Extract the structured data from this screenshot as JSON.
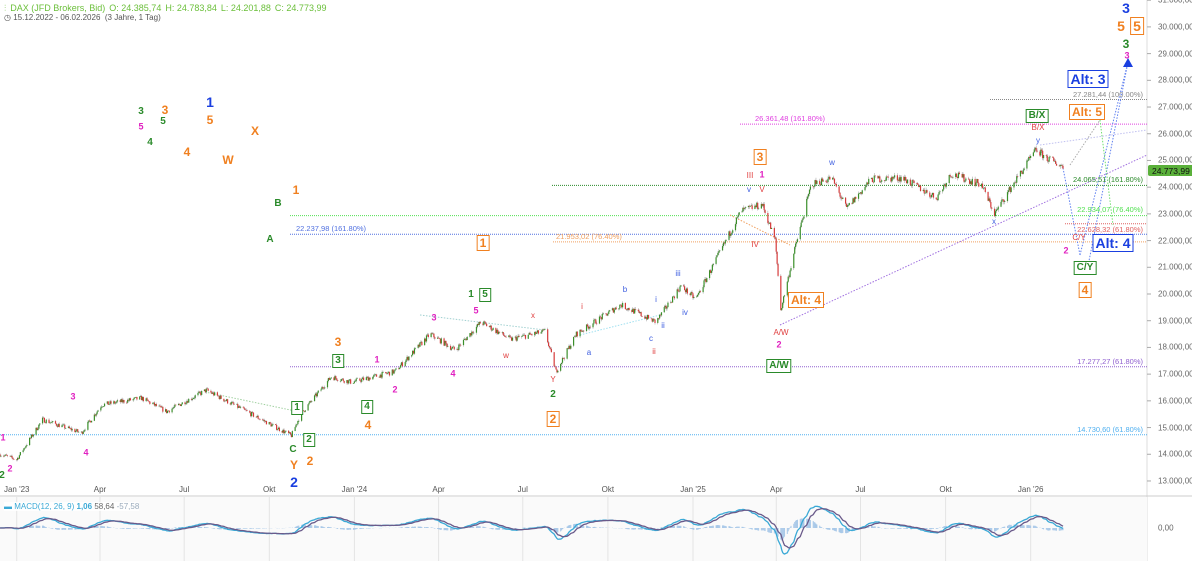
{
  "header": {
    "icon": "bar-chart-icon",
    "instrument": "DAX (JFD Brokers, Bid)",
    "open": "O: 24.385,74",
    "high": "H: 24.783,84",
    "low": "L: 24.201,88",
    "close": "C: 24.773,99",
    "range": "15.12.2022 - 06.02.2026",
    "period": "(3 Jahre, 1 Tag)",
    "clock_icon": "clock-icon"
  },
  "price_tag": "24.773,99",
  "macd": {
    "label": "MACD(12, 26, 9)",
    "v1": "1,06",
    "v2": "58,64",
    "v3": "-57,58",
    "zero_label": "0,00"
  },
  "colors": {
    "up": "#3a8f2a",
    "down": "#d63a3a",
    "blue": "#1a3fe0",
    "orange": "#f08020",
    "green": "#2a8a2a",
    "magenta": "#e020c0",
    "red": "#e04040",
    "lblue": "#4060e0",
    "macd": "#3aa9d6",
    "signal": "#6a5a8a",
    "hist": "#a8c8e8"
  },
  "fib_levels": [
    {
      "text": "27.281,44 (100.00%)",
      "value": 27281.44,
      "color": "#888888"
    },
    {
      "text": "26.361,48 (161.80%)",
      "value": 26361.48,
      "color": "#e040e0"
    },
    {
      "text": "24.065,51 (161.80%)",
      "value": 24065.51,
      "color": "#2a8a2a"
    },
    {
      "text": "22.934,07 (76.40%)",
      "value": 22934.07,
      "color": "#50e050"
    },
    {
      "text": "22.628,32 (61.80%)",
      "value": 22628.32,
      "color": "#e06060"
    },
    {
      "text": "22.237,98 (161.80%)",
      "value": 22237.98,
      "color": "#5070e0"
    },
    {
      "text": "21.953,02 (76.40%)",
      "value": 21953.02,
      "color": "#f0a060"
    },
    {
      "text": "17.277,27 (61.80%)",
      "value": 17277.27,
      "color": "#9060d0"
    },
    {
      "text": "14.730,60 (61.80%)",
      "value": 14730.6,
      "color": "#50b0f0"
    }
  ],
  "waves": {
    "blue": [
      "3",
      "1",
      "2",
      "Alt: 3",
      "Alt: 4"
    ],
    "orange": [
      "5",
      "5",
      "3",
      "5",
      "X",
      "W",
      "4",
      "1",
      "2",
      "Y",
      "3",
      "4",
      "1",
      "2",
      "3",
      "Alt: 4",
      "Alt: 5",
      "4"
    ],
    "green": [
      "3",
      "3",
      "5",
      "4",
      "B",
      "A",
      "C",
      "1",
      "2",
      "3",
      "4",
      "1",
      "5",
      "2",
      "A/W",
      "B/X",
      "C/Y",
      "2"
    ],
    "magenta": [
      "3",
      "5",
      "3",
      "4",
      "1",
      "2",
      "1",
      "2",
      "3",
      "4",
      "5",
      "1",
      "2",
      "2"
    ],
    "red": [
      "x",
      "w",
      "i",
      "ii",
      "Y",
      "III",
      "V",
      "IV",
      "A/W",
      "B/X",
      "C/Y"
    ],
    "lblue": [
      "b",
      "a",
      "i",
      "ii",
      "c",
      "iii",
      "iv",
      "v",
      "w",
      "y",
      "x"
    ]
  },
  "chart_data": {
    "type": "candlestick",
    "title": "DAX (JFD Brokers, Bid)",
    "x_ticks": [
      "Jan '23",
      "Apr",
      "Jul",
      "Okt",
      "Jan '24",
      "Apr",
      "Jul",
      "Okt",
      "Jan '25",
      "Apr",
      "Jul",
      "Okt",
      "Jan '26"
    ],
    "y_ticks": [
      "31.000,00",
      "30.000,00",
      "29.000,00",
      "28.000,00",
      "27.000,00",
      "26.000,00",
      "25.000,00",
      "24.000,00",
      "23.000,00",
      "22.000,00",
      "21.000,00",
      "20.000,00",
      "19.000,00",
      "18.000,00",
      "17.000,00",
      "16.000,00",
      "15.000,00",
      "14.000,00",
      "13.000,00"
    ],
    "ylim": [
      12600,
      31000
    ],
    "xlim": [
      "2022-12-15",
      "2026-02-06"
    ],
    "approx_close_path": [
      [
        "2022-12-15",
        14000
      ],
      [
        "2023-01-02",
        13800
      ],
      [
        "2023-01-30",
        15300
      ],
      [
        "2023-03-13",
        14800
      ],
      [
        "2023-04-04",
        15850
      ],
      [
        "2023-05-17",
        16100
      ],
      [
        "2023-06-13",
        15600
      ],
      [
        "2023-07-26",
        16400
      ],
      [
        "2023-09-02",
        15700
      ],
      [
        "2023-10-26",
        14700
      ],
      [
        "2023-11-05",
        15500
      ],
      [
        "2023-12-08",
        16900
      ],
      [
        "2023-12-30",
        16700
      ],
      [
        "2024-02-15",
        17100
      ],
      [
        "2024-03-24",
        18500
      ],
      [
        "2024-04-20",
        17900
      ],
      [
        "2024-05-18",
        18950
      ],
      [
        "2024-06-19",
        18300
      ],
      [
        "2024-07-26",
        18600
      ],
      [
        "2024-08-07",
        17100
      ],
      [
        "2024-08-29",
        18500
      ],
      [
        "2024-10-16",
        19600
      ],
      [
        "2024-11-23",
        18950
      ],
      [
        "2024-12-20",
        20300
      ],
      [
        "2025-01-05",
        19800
      ],
      [
        "2025-02-23",
        23100
      ],
      [
        "2025-03-18",
        23350
      ],
      [
        "2025-04-01",
        22000
      ],
      [
        "2025-04-07",
        19400
      ],
      [
        "2025-04-23",
        21800
      ],
      [
        "2025-05-10",
        24100
      ],
      [
        "2025-06-01",
        24350
      ],
      [
        "2025-06-17",
        23200
      ],
      [
        "2025-07-14",
        24300
      ],
      [
        "2025-08-16",
        24350
      ],
      [
        "2025-09-22",
        23600
      ],
      [
        "2025-10-08",
        24500
      ],
      [
        "2025-11-10",
        24100
      ],
      [
        "2025-11-24",
        23000
      ],
      [
        "2025-12-12",
        24000
      ],
      [
        "2026-01-08",
        25400
      ],
      [
        "2026-01-19",
        25100
      ],
      [
        "2026-02-06",
        24773.99
      ]
    ],
    "grid": true
  }
}
